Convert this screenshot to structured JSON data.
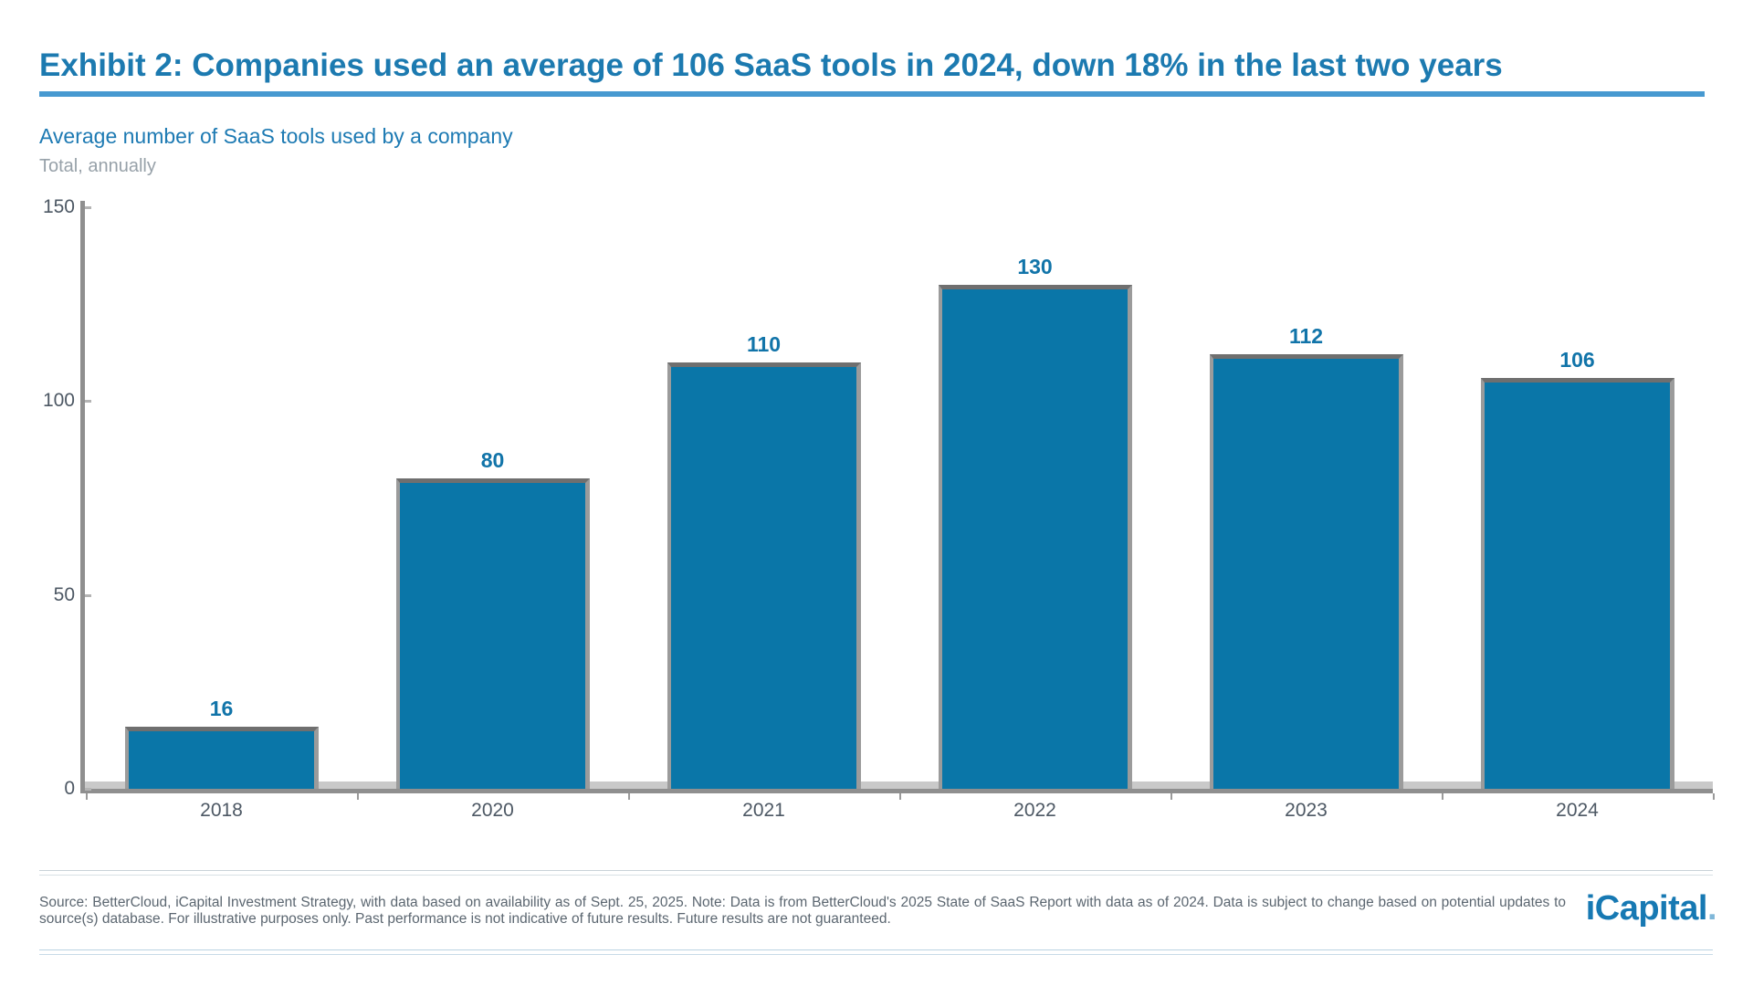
{
  "header": {
    "title": "Exhibit 2: Companies used an average of 106 SaaS tools in 2024, down 18% in the last two years"
  },
  "chart_data": {
    "type": "bar",
    "title": "Average number of SaaS tools used by a company",
    "subtitle": "Total, annually",
    "categories": [
      "2018",
      "2020",
      "2021",
      "2022",
      "2023",
      "2024"
    ],
    "values": [
      16,
      80,
      110,
      130,
      112,
      106
    ],
    "xlabel": "",
    "ylabel": "",
    "ylim": [
      0,
      150
    ],
    "yticks": [
      0,
      50,
      100,
      150
    ],
    "grid": false,
    "legend": false,
    "data_labels": true,
    "bar_color": "#0a76a8",
    "bar_edge_color": "#6f6f6f",
    "axis_color": "#8f8f8f",
    "tick_label_color": "#4d5864",
    "value_label_color": "#1174a9"
  },
  "footer": {
    "source_text": "Source: BetterCloud, iCapital Investment Strategy, with data based on availability as of Sept. 25, 2025. Note: Data is from BetterCloud's 2025 State of SaaS Report with data as of 2024. Data is subject to change based on potential updates to source(s) database. For illustrative purposes only. Past performance is not indicative of future results. Future results are not guaranteed.",
    "logo_text": "iCapital",
    "logo_dot": "."
  },
  "colors": {
    "title_blue": "#1c7ab0",
    "rule_blue": "#4799d0",
    "caption_gray": "#97a1a9",
    "bar_blue": "#0a76a8",
    "logo_blue": "#1779b3"
  }
}
